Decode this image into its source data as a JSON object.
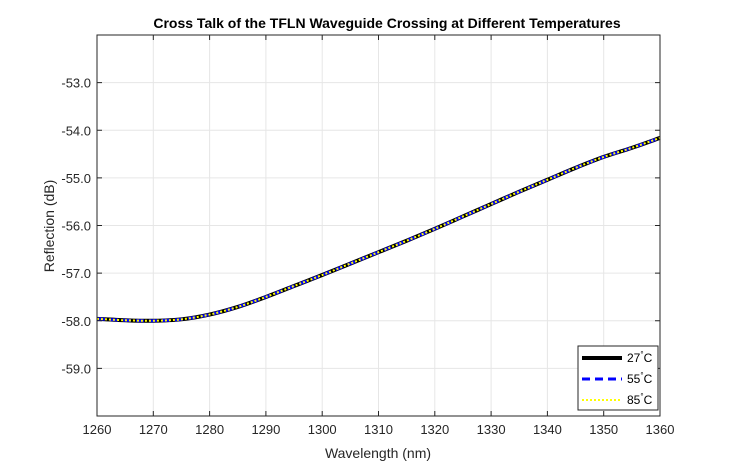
{
  "chart_data": {
    "type": "line",
    "title": "Cross Talk of the TFLN Waveguide Crossing at Different Temperatures",
    "xlabel": "Wavelength (nm)",
    "ylabel": "Reflection (dB)",
    "xlim": [
      1260,
      1360
    ],
    "ylim": [
      -60,
      -52
    ],
    "xticks": [
      1260,
      1270,
      1280,
      1290,
      1300,
      1310,
      1320,
      1330,
      1340,
      1350,
      1360
    ],
    "xtick_labels": [
      "1260",
      "1270",
      "1280",
      "1290",
      "1300",
      "1310",
      "1320",
      "1330",
      "1340",
      "1350",
      "1360"
    ],
    "yticks": [
      -59,
      -58,
      -57,
      -56,
      -55,
      -54,
      -53
    ],
    "ytick_labels": [
      "-59.0",
      "-58.0",
      "-57.0",
      "-56.0",
      "-55.0",
      "-54.0",
      "-53.0"
    ],
    "grid": true,
    "legend_position": "bottom-right",
    "x": [
      1260,
      1265,
      1270,
      1275,
      1280,
      1285,
      1290,
      1295,
      1300,
      1305,
      1310,
      1315,
      1320,
      1325,
      1330,
      1335,
      1340,
      1345,
      1350,
      1355,
      1360
    ],
    "series": [
      {
        "name": "27°C",
        "color": "#000000",
        "style": "solid",
        "values": [
          -57.96,
          -57.99,
          -58.0,
          -57.97,
          -57.87,
          -57.71,
          -57.5,
          -57.27,
          -57.04,
          -56.8,
          -56.56,
          -56.32,
          -56.07,
          -55.81,
          -55.55,
          -55.29,
          -55.04,
          -54.79,
          -54.56,
          -54.37,
          -54.16
        ]
      },
      {
        "name": "55°C",
        "color": "#0000ff",
        "style": "dashed",
        "values": [
          -57.96,
          -57.99,
          -58.0,
          -57.97,
          -57.87,
          -57.71,
          -57.5,
          -57.27,
          -57.04,
          -56.8,
          -56.56,
          -56.32,
          -56.07,
          -55.81,
          -55.55,
          -55.29,
          -55.04,
          -54.79,
          -54.56,
          -54.37,
          -54.16
        ]
      },
      {
        "name": "85°C",
        "color": "#ffff00",
        "style": "dotted",
        "values": [
          -57.96,
          -57.99,
          -58.0,
          -57.97,
          -57.87,
          -57.71,
          -57.5,
          -57.27,
          -57.04,
          -56.8,
          -56.56,
          -56.32,
          -56.07,
          -55.81,
          -55.55,
          -55.29,
          -55.04,
          -54.79,
          -54.56,
          -54.37,
          -54.16
        ]
      }
    ],
    "legend": [
      {
        "temp": "27",
        "unit": "C",
        "degree": "°"
      },
      {
        "temp": "55",
        "unit": "C",
        "degree": "°"
      },
      {
        "temp": "85",
        "unit": "C",
        "degree": "°"
      }
    ]
  }
}
